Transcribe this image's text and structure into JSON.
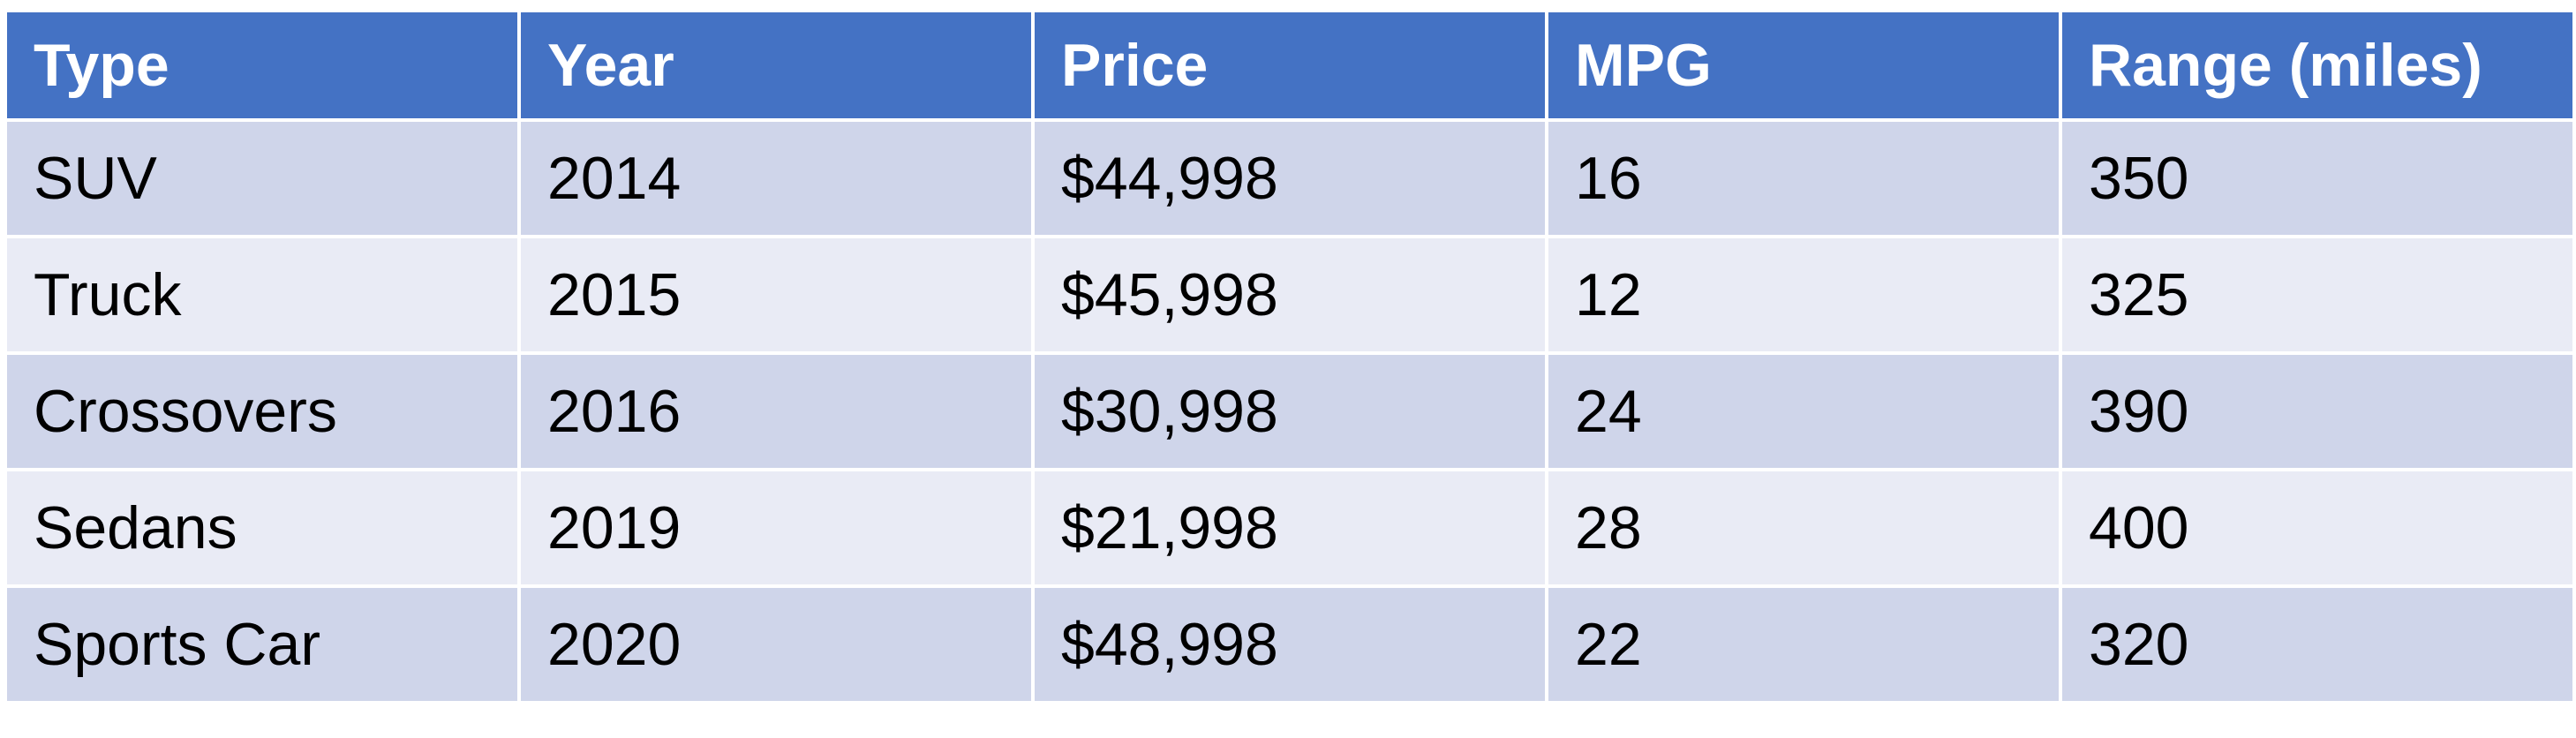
{
  "table": {
    "header_color": "#4472c4",
    "band_color_1": "#cfd5ea",
    "band_color_2": "#e9ebf5",
    "columns": [
      "Type",
      "Year",
      "Price",
      "MPG",
      "Range (miles)"
    ],
    "rows": [
      [
        "SUV",
        "2014",
        "$44,998",
        "16",
        "350"
      ],
      [
        "Truck",
        "2015",
        "$45,998",
        "12",
        "325"
      ],
      [
        "Crossovers",
        "2016",
        "$30,998",
        "24",
        "390"
      ],
      [
        "Sedans",
        "2019",
        "$21,998",
        "28",
        "400"
      ],
      [
        "Sports Car",
        "2020",
        "$48,998",
        "22",
        "320"
      ]
    ]
  }
}
